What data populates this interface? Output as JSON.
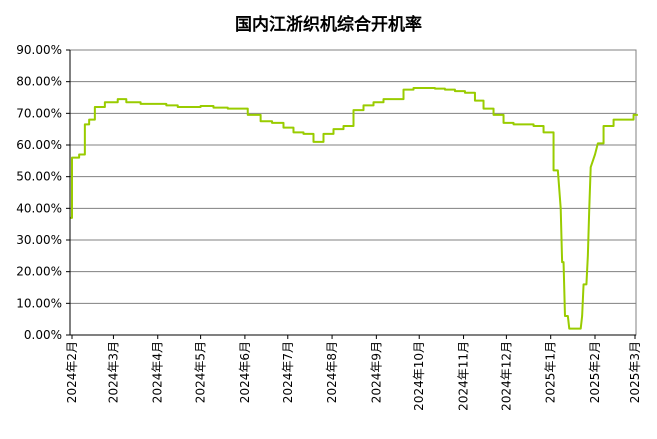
{
  "chart_data": {
    "type": "line",
    "title": "国内江浙织机综合开机率",
    "xlabel": "",
    "ylabel": "",
    "ylim": [
      0,
      90
    ],
    "grid": true,
    "legend": "none",
    "y_ticks": [
      "0.00%",
      "10.00%",
      "20.00%",
      "30.00%",
      "40.00%",
      "50.00%",
      "60.00%",
      "70.00%",
      "80.00%",
      "90.00%"
    ],
    "x_ticks": [
      {
        "label": "2024年2月",
        "date": "2024-02-01"
      },
      {
        "label": "2024年3月",
        "date": "2024-03-01"
      },
      {
        "label": "2024年4月",
        "date": "2024-04-01"
      },
      {
        "label": "2024年5月",
        "date": "2024-05-01"
      },
      {
        "label": "2024年6月",
        "date": "2024-06-01"
      },
      {
        "label": "2024年7月",
        "date": "2024-07-01"
      },
      {
        "label": "2024年8月",
        "date": "2024-08-01"
      },
      {
        "label": "2024年9月",
        "date": "2024-09-01"
      },
      {
        "label": "2024年10月",
        "date": "2024-10-01"
      },
      {
        "label": "2024年11月",
        "date": "2024-11-01"
      },
      {
        "label": "2024年12月",
        "date": "2024-12-01"
      },
      {
        "label": "2025年1月",
        "date": "2025-01-01"
      },
      {
        "label": "2025年2月",
        "date": "2025-02-01"
      },
      {
        "label": "2025年3月",
        "date": "2025-03-01"
      }
    ],
    "series": [
      {
        "color": "#99cc00",
        "points": [
          [
            "2024-01-31",
            37.0
          ],
          [
            "2024-02-01",
            37.0
          ],
          [
            "2024-02-01",
            56.0
          ],
          [
            "2024-02-06",
            56.0
          ],
          [
            "2024-02-06",
            57.0
          ],
          [
            "2024-02-10",
            57.0
          ],
          [
            "2024-02-10",
            66.5
          ],
          [
            "2024-02-13",
            66.5
          ],
          [
            "2024-02-13",
            68.0
          ],
          [
            "2024-02-17",
            68.0
          ],
          [
            "2024-02-17",
            72.0
          ],
          [
            "2024-02-24",
            72.0
          ],
          [
            "2024-02-24",
            73.5
          ],
          [
            "2024-03-04",
            73.5
          ],
          [
            "2024-03-04",
            74.5
          ],
          [
            "2024-03-10",
            74.5
          ],
          [
            "2024-03-10",
            73.5
          ],
          [
            "2024-03-20",
            73.5
          ],
          [
            "2024-03-20",
            73.0
          ],
          [
            "2024-04-07",
            73.0
          ],
          [
            "2024-04-07",
            72.5
          ],
          [
            "2024-04-15",
            72.5
          ],
          [
            "2024-04-15",
            72.0
          ],
          [
            "2024-05-01",
            72.0
          ],
          [
            "2024-05-01",
            72.3
          ],
          [
            "2024-05-10",
            72.3
          ],
          [
            "2024-05-10",
            71.8
          ],
          [
            "2024-05-20",
            71.8
          ],
          [
            "2024-05-20",
            71.5
          ],
          [
            "2024-06-03",
            71.5
          ],
          [
            "2024-06-03",
            69.5
          ],
          [
            "2024-06-12",
            69.5
          ],
          [
            "2024-06-12",
            67.5
          ],
          [
            "2024-06-20",
            67.5
          ],
          [
            "2024-06-20",
            67.0
          ],
          [
            "2024-06-28",
            67.0
          ],
          [
            "2024-06-28",
            65.5
          ],
          [
            "2024-07-05",
            65.5
          ],
          [
            "2024-07-05",
            64.0
          ],
          [
            "2024-07-12",
            64.0
          ],
          [
            "2024-07-12",
            63.5
          ],
          [
            "2024-07-19",
            63.5
          ],
          [
            "2024-07-19",
            61.0
          ],
          [
            "2024-07-26",
            61.0
          ],
          [
            "2024-07-26",
            63.5
          ],
          [
            "2024-08-02",
            63.5
          ],
          [
            "2024-08-02",
            65.0
          ],
          [
            "2024-08-09",
            65.0
          ],
          [
            "2024-08-09",
            66.0
          ],
          [
            "2024-08-16",
            66.0
          ],
          [
            "2024-08-16",
            71.0
          ],
          [
            "2024-08-23",
            71.0
          ],
          [
            "2024-08-23",
            72.5
          ],
          [
            "2024-08-30",
            72.5
          ],
          [
            "2024-08-30",
            73.5
          ],
          [
            "2024-09-06",
            73.5
          ],
          [
            "2024-09-06",
            74.5
          ],
          [
            "2024-09-13",
            74.5
          ],
          [
            "2024-09-20",
            74.5
          ],
          [
            "2024-09-20",
            77.5
          ],
          [
            "2024-09-27",
            77.5
          ],
          [
            "2024-09-27",
            78.0
          ],
          [
            "2024-10-12",
            78.0
          ],
          [
            "2024-10-12",
            77.8
          ],
          [
            "2024-10-19",
            77.8
          ],
          [
            "2024-10-19",
            77.5
          ],
          [
            "2024-10-26",
            77.5
          ],
          [
            "2024-10-26",
            77.0
          ],
          [
            "2024-11-02",
            77.0
          ],
          [
            "2024-11-02",
            76.5
          ],
          [
            "2024-11-09",
            76.5
          ],
          [
            "2024-11-09",
            74.0
          ],
          [
            "2024-11-15",
            74.0
          ],
          [
            "2024-11-15",
            71.5
          ],
          [
            "2024-11-22",
            71.5
          ],
          [
            "2024-11-22",
            69.5
          ],
          [
            "2024-11-29",
            69.5
          ],
          [
            "2024-11-29",
            67.0
          ],
          [
            "2024-12-06",
            67.0
          ],
          [
            "2024-12-06",
            66.5
          ],
          [
            "2024-12-20",
            66.5
          ],
          [
            "2024-12-20",
            66.0
          ],
          [
            "2024-12-27",
            66.0
          ],
          [
            "2024-12-27",
            64.0
          ],
          [
            "2025-01-03",
            64.0
          ],
          [
            "2025-01-03",
            52.0
          ],
          [
            "2025-01-06",
            52.0
          ],
          [
            "2025-01-08",
            40.0
          ],
          [
            "2025-01-09",
            23.0
          ],
          [
            "2025-01-10",
            23.0
          ],
          [
            "2025-01-11",
            6.0
          ],
          [
            "2025-01-13",
            6.0
          ],
          [
            "2025-01-14",
            2.0
          ],
          [
            "2025-01-22",
            2.0
          ],
          [
            "2025-01-23",
            6.0
          ],
          [
            "2025-01-24",
            16.0
          ],
          [
            "2025-01-26",
            16.0
          ],
          [
            "2025-01-27",
            25.0
          ],
          [
            "2025-01-28",
            40.0
          ],
          [
            "2025-01-29",
            53.0
          ],
          [
            "2025-02-01",
            57.0
          ],
          [
            "2025-02-03",
            60.5
          ],
          [
            "2025-02-07",
            60.5
          ],
          [
            "2025-02-07",
            66.0
          ],
          [
            "2025-02-14",
            66.0
          ],
          [
            "2025-02-14",
            68.0
          ],
          [
            "2025-02-28",
            68.0
          ],
          [
            "2025-02-28",
            69.5
          ],
          [
            "2025-03-03",
            69.5
          ]
        ]
      }
    ]
  }
}
